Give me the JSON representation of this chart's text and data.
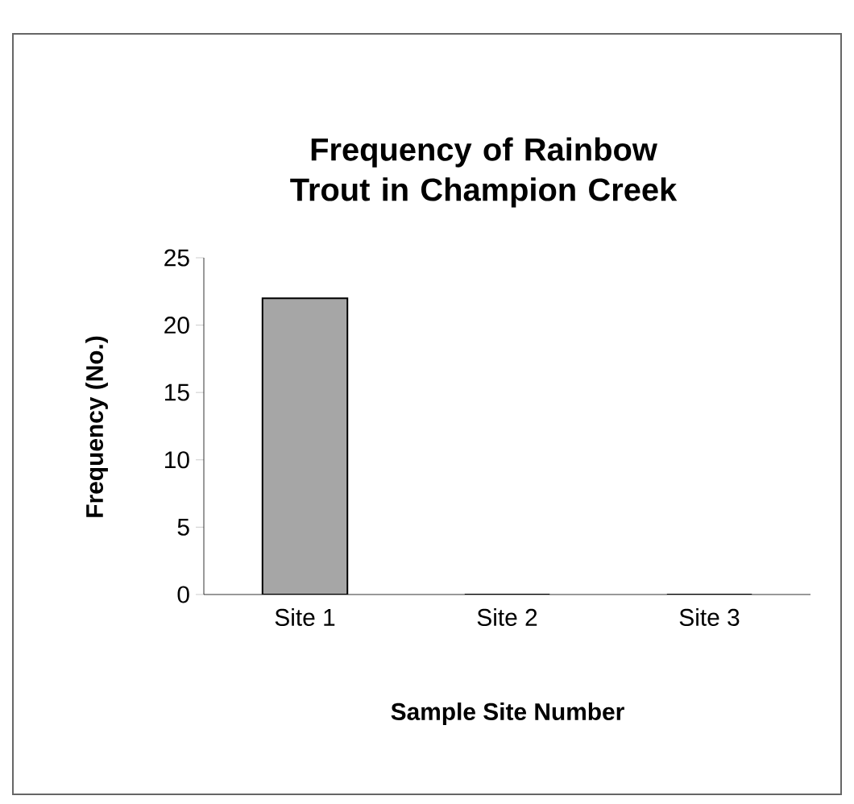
{
  "chart_data": {
    "type": "bar",
    "title": "Frequency of Rainbow Trout in Champion Creek",
    "xlabel": "Sample Site Number",
    "ylabel": "Frequency (No.)",
    "categories": [
      "Site 1",
      "Site 2",
      "Site 3"
    ],
    "values": [
      22,
      0,
      0
    ],
    "color": "#a6a6a6",
    "ylim": [
      0,
      25
    ],
    "yticks": [
      0,
      5,
      10,
      15,
      20,
      25
    ],
    "grid": false
  }
}
